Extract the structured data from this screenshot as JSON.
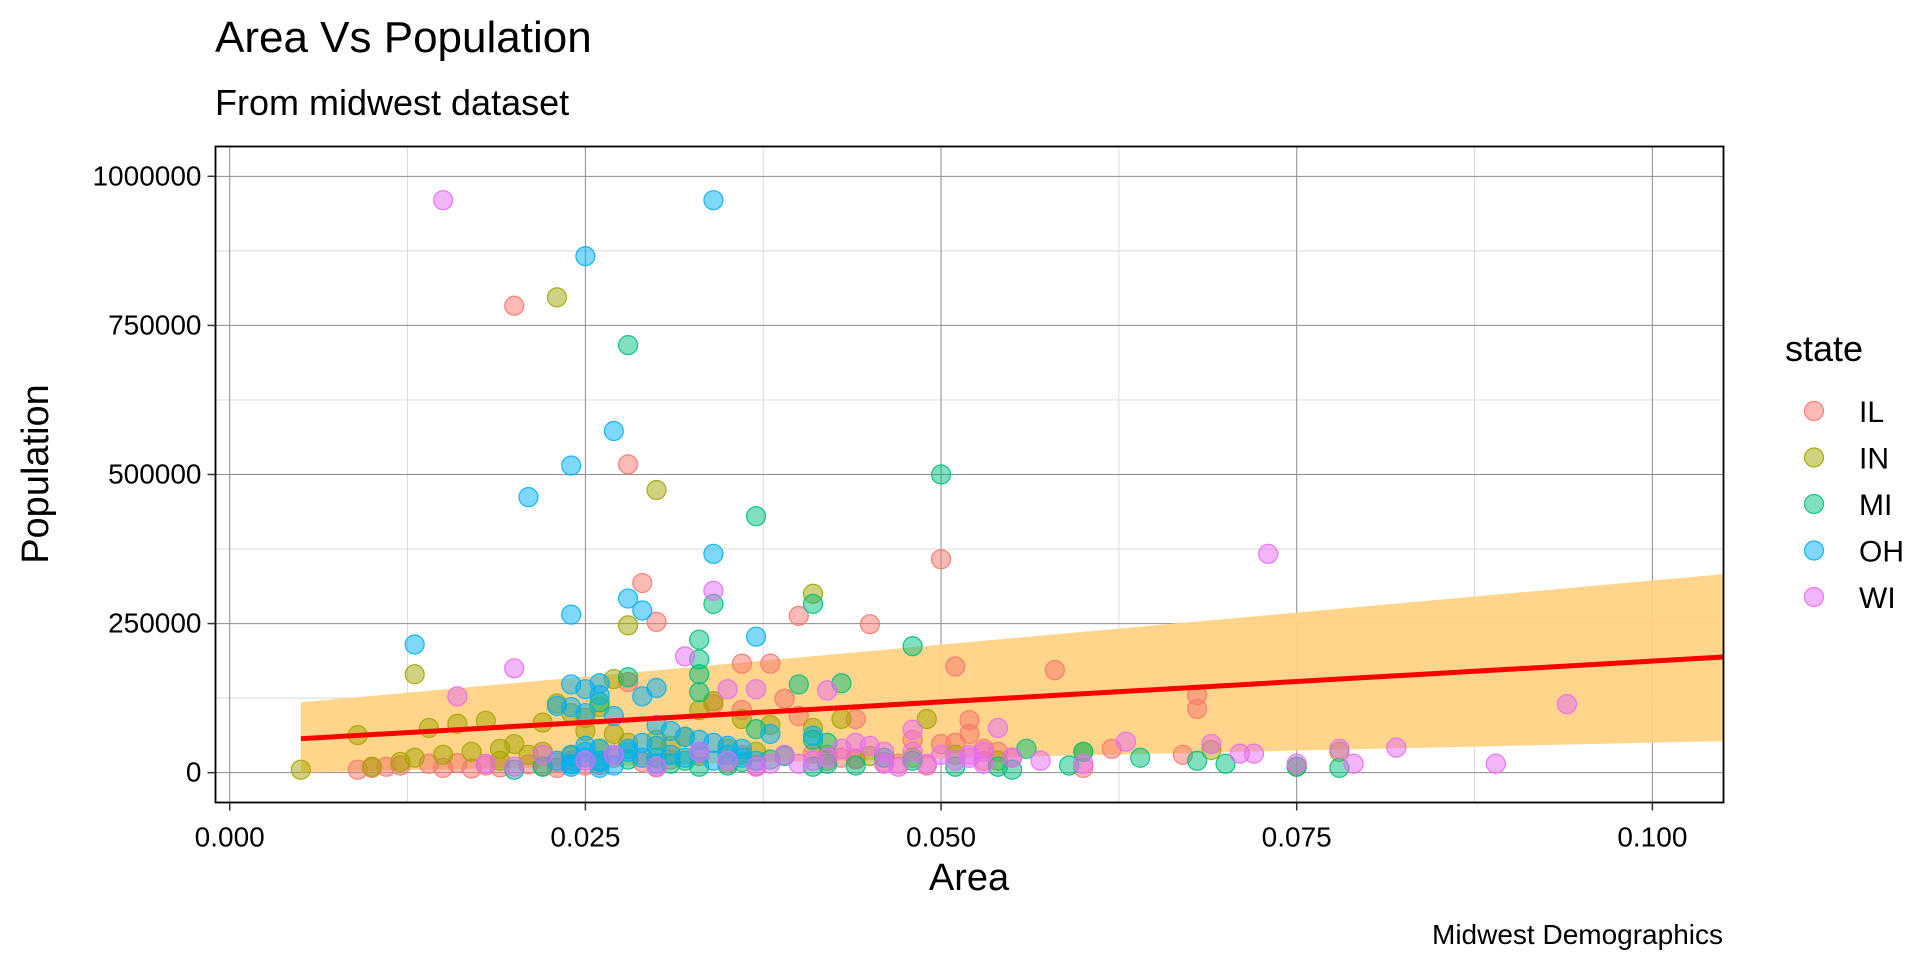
{
  "chart_data": {
    "type": "scatter",
    "title": "Area Vs Population",
    "subtitle": "From midwest dataset",
    "caption": "Midwest Demographics",
    "xlabel": "Area",
    "ylabel": "Population",
    "xlim": [
      -0.001,
      0.105
    ],
    "ylim": [
      -50000,
      1050000
    ],
    "x_ticks": [
      0.0,
      0.025,
      0.05,
      0.075,
      0.1
    ],
    "x_tick_labels": [
      "0.000",
      "0.025",
      "0.050",
      "0.075",
      "0.100"
    ],
    "y_ticks": [
      0,
      250000,
      500000,
      750000,
      1000000
    ],
    "y_tick_labels": [
      "0",
      "250000",
      "500000",
      "750000",
      "1000000"
    ],
    "grid": true,
    "legend": {
      "title": "state",
      "position": "right"
    },
    "series": [
      {
        "name": "IL",
        "color": "#F8766D",
        "points": [
          [
            0.02,
            783000
          ],
          [
            0.028,
            517000
          ],
          [
            0.029,
            318000
          ],
          [
            0.03,
            253000
          ],
          [
            0.05,
            358000
          ],
          [
            0.045,
            249000
          ],
          [
            0.04,
            263000
          ],
          [
            0.051,
            178000
          ],
          [
            0.058,
            172000
          ],
          [
            0.068,
            130000
          ],
          [
            0.068,
            107000
          ],
          [
            0.036,
            183000
          ],
          [
            0.038,
            183000
          ],
          [
            0.039,
            124000
          ],
          [
            0.028,
            152000
          ],
          [
            0.034,
            115000
          ],
          [
            0.036,
            105000
          ],
          [
            0.04,
            95000
          ],
          [
            0.044,
            90000
          ],
          [
            0.052,
            88000
          ],
          [
            0.052,
            65000
          ],
          [
            0.048,
            55000
          ],
          [
            0.05,
            48000
          ],
          [
            0.051,
            50000
          ],
          [
            0.053,
            40000
          ],
          [
            0.054,
            35000
          ],
          [
            0.062,
            40000
          ],
          [
            0.067,
            30000
          ],
          [
            0.009,
            5000
          ],
          [
            0.01,
            8000
          ],
          [
            0.011,
            10000
          ],
          [
            0.012,
            12000
          ],
          [
            0.014,
            15000
          ],
          [
            0.015,
            8000
          ],
          [
            0.017,
            7000
          ],
          [
            0.018,
            12000
          ],
          [
            0.019,
            9000
          ],
          [
            0.021,
            14000
          ],
          [
            0.022,
            11000
          ],
          [
            0.023,
            17000
          ],
          [
            0.024,
            20000
          ],
          [
            0.026,
            13000
          ],
          [
            0.027,
            25000
          ],
          [
            0.029,
            18000
          ],
          [
            0.03,
            9000
          ],
          [
            0.031,
            22000
          ],
          [
            0.033,
            28000
          ],
          [
            0.035,
            16000
          ],
          [
            0.036,
            30000
          ],
          [
            0.037,
            12000
          ],
          [
            0.041,
            32000
          ],
          [
            0.042,
            20000
          ],
          [
            0.043,
            25000
          ],
          [
            0.044,
            22000
          ],
          [
            0.046,
            18000
          ],
          [
            0.047,
            15000
          ],
          [
            0.049,
            12000
          ],
          [
            0.053,
            20000
          ],
          [
            0.055,
            25000
          ],
          [
            0.06,
            8000
          ],
          [
            0.025,
            12000
          ],
          [
            0.023,
            8000
          ],
          [
            0.016,
            16000
          ],
          [
            0.044,
            24000
          ]
        ]
      },
      {
        "name": "IN",
        "color": "#A3A500",
        "points": [
          [
            0.023,
            797000
          ],
          [
            0.03,
            474000
          ],
          [
            0.041,
            300000
          ],
          [
            0.028,
            247000
          ],
          [
            0.013,
            165000
          ],
          [
            0.027,
            157000
          ],
          [
            0.022,
            84000
          ],
          [
            0.024,
            100000
          ],
          [
            0.025,
            92000
          ],
          [
            0.02,
            48000
          ],
          [
            0.014,
            75000
          ],
          [
            0.009,
            63000
          ],
          [
            0.018,
            87000
          ],
          [
            0.019,
            40000
          ],
          [
            0.016,
            82000
          ],
          [
            0.023,
            116000
          ],
          [
            0.026,
            110000
          ],
          [
            0.033,
            105000
          ],
          [
            0.034,
            120000
          ],
          [
            0.036,
            90000
          ],
          [
            0.038,
            80000
          ],
          [
            0.041,
            75000
          ],
          [
            0.043,
            90000
          ],
          [
            0.049,
            90000
          ],
          [
            0.005,
            5000
          ],
          [
            0.01,
            10000
          ],
          [
            0.012,
            18000
          ],
          [
            0.013,
            25000
          ],
          [
            0.015,
            30000
          ],
          [
            0.017,
            35000
          ],
          [
            0.021,
            30000
          ],
          [
            0.022,
            35000
          ],
          [
            0.024,
            28000
          ],
          [
            0.026,
            40000
          ],
          [
            0.028,
            50000
          ],
          [
            0.03,
            55000
          ],
          [
            0.031,
            45000
          ],
          [
            0.032,
            60000
          ],
          [
            0.035,
            40000
          ],
          [
            0.037,
            35000
          ],
          [
            0.042,
            30000
          ],
          [
            0.045,
            28000
          ],
          [
            0.048,
            25000
          ],
          [
            0.051,
            30000
          ],
          [
            0.054,
            20000
          ],
          [
            0.06,
            35000
          ],
          [
            0.069,
            38000
          ],
          [
            0.078,
            35000
          ],
          [
            0.075,
            10000
          ],
          [
            0.027,
            65000
          ],
          [
            0.025,
            70000
          ],
          [
            0.019,
            20000
          ]
        ]
      },
      {
        "name": "MI",
        "color": "#00BF7D",
        "points": [
          [
            0.028,
            717000
          ],
          [
            0.05,
            500000
          ],
          [
            0.037,
            430000
          ],
          [
            0.034,
            283000
          ],
          [
            0.041,
            283000
          ],
          [
            0.048,
            212000
          ],
          [
            0.033,
            223000
          ],
          [
            0.033,
            190000
          ],
          [
            0.033,
            165000
          ],
          [
            0.033,
            135000
          ],
          [
            0.028,
            160000
          ],
          [
            0.043,
            150000
          ],
          [
            0.04,
            148000
          ],
          [
            0.026,
            118000
          ],
          [
            0.037,
            73000
          ],
          [
            0.041,
            55000
          ],
          [
            0.042,
            50000
          ],
          [
            0.056,
            40000
          ],
          [
            0.06,
            35000
          ],
          [
            0.064,
            25000
          ],
          [
            0.068,
            20000
          ],
          [
            0.07,
            15000
          ],
          [
            0.075,
            10000
          ],
          [
            0.078,
            8000
          ],
          [
            0.055,
            5000
          ],
          [
            0.051,
            10000
          ],
          [
            0.059,
            12000
          ],
          [
            0.02,
            5000
          ],
          [
            0.022,
            10000
          ],
          [
            0.024,
            14000
          ],
          [
            0.026,
            18000
          ],
          [
            0.028,
            22000
          ],
          [
            0.03,
            25000
          ],
          [
            0.031,
            15000
          ],
          [
            0.032,
            20000
          ],
          [
            0.033,
            10000
          ],
          [
            0.035,
            12000
          ],
          [
            0.036,
            18000
          ],
          [
            0.038,
            22000
          ],
          [
            0.039,
            28000
          ],
          [
            0.041,
            10000
          ],
          [
            0.042,
            15000
          ],
          [
            0.044,
            12000
          ],
          [
            0.046,
            25000
          ],
          [
            0.048,
            20000
          ],
          [
            0.054,
            10000
          ]
        ]
      },
      {
        "name": "OH",
        "color": "#00B0F6",
        "points": [
          [
            0.034,
            960000
          ],
          [
            0.025,
            866000
          ],
          [
            0.027,
            573000
          ],
          [
            0.024,
            515000
          ],
          [
            0.021,
            462000
          ],
          [
            0.034,
            367000
          ],
          [
            0.028,
            292000
          ],
          [
            0.029,
            272000
          ],
          [
            0.024,
            265000
          ],
          [
            0.037,
            228000
          ],
          [
            0.013,
            215000
          ],
          [
            0.024,
            148000
          ],
          [
            0.026,
            150000
          ],
          [
            0.025,
            140000
          ],
          [
            0.03,
            142000
          ],
          [
            0.026,
            130000
          ],
          [
            0.029,
            128000
          ],
          [
            0.023,
            112000
          ],
          [
            0.024,
            110000
          ],
          [
            0.025,
            100000
          ],
          [
            0.027,
            95000
          ],
          [
            0.038,
            65000
          ],
          [
            0.041,
            62000
          ],
          [
            0.03,
            80000
          ],
          [
            0.031,
            70000
          ],
          [
            0.032,
            60000
          ],
          [
            0.033,
            55000
          ],
          [
            0.034,
            50000
          ],
          [
            0.035,
            45000
          ],
          [
            0.036,
            40000
          ],
          [
            0.024,
            30000
          ],
          [
            0.025,
            25000
          ],
          [
            0.026,
            20000
          ],
          [
            0.024,
            15000
          ],
          [
            0.025,
            35000
          ],
          [
            0.026,
            40000
          ],
          [
            0.027,
            30000
          ],
          [
            0.028,
            35000
          ],
          [
            0.029,
            25000
          ],
          [
            0.03,
            45000
          ],
          [
            0.031,
            30000
          ],
          [
            0.032,
            25000
          ],
          [
            0.033,
            35000
          ],
          [
            0.034,
            20000
          ],
          [
            0.035,
            30000
          ],
          [
            0.036,
            25000
          ],
          [
            0.037,
            20000
          ],
          [
            0.023,
            20000
          ],
          [
            0.024,
            10000
          ],
          [
            0.025,
            45000
          ],
          [
            0.026,
            8000
          ],
          [
            0.027,
            12000
          ],
          [
            0.028,
            40000
          ],
          [
            0.029,
            50000
          ],
          [
            0.03,
            15000
          ]
        ]
      },
      {
        "name": "WI",
        "color": "#E76BF3",
        "points": [
          [
            0.015,
            960000
          ],
          [
            0.073,
            367000
          ],
          [
            0.034,
            305000
          ],
          [
            0.032,
            195000
          ],
          [
            0.02,
            175000
          ],
          [
            0.035,
            140000
          ],
          [
            0.037,
            140000
          ],
          [
            0.016,
            128000
          ],
          [
            0.042,
            138000
          ],
          [
            0.048,
            72000
          ],
          [
            0.052,
            30000
          ],
          [
            0.053,
            35000
          ],
          [
            0.054,
            75000
          ],
          [
            0.057,
            20000
          ],
          [
            0.06,
            15000
          ],
          [
            0.063,
            52000
          ],
          [
            0.069,
            48000
          ],
          [
            0.071,
            32000
          ],
          [
            0.072,
            32000
          ],
          [
            0.075,
            15000
          ],
          [
            0.078,
            40000
          ],
          [
            0.079,
            15000
          ],
          [
            0.082,
            42000
          ],
          [
            0.089,
            15000
          ],
          [
            0.094,
            115000
          ],
          [
            0.04,
            15000
          ],
          [
            0.042,
            25000
          ],
          [
            0.045,
            45000
          ],
          [
            0.046,
            35000
          ],
          [
            0.047,
            10000
          ],
          [
            0.049,
            15000
          ],
          [
            0.05,
            30000
          ],
          [
            0.051,
            20000
          ],
          [
            0.053,
            15000
          ],
          [
            0.055,
            25000
          ],
          [
            0.018,
            15000
          ],
          [
            0.02,
            10000
          ],
          [
            0.022,
            30000
          ],
          [
            0.025,
            20000
          ],
          [
            0.027,
            30000
          ],
          [
            0.03,
            10000
          ],
          [
            0.033,
            35000
          ],
          [
            0.035,
            20000
          ],
          [
            0.037,
            10000
          ],
          [
            0.039,
            30000
          ],
          [
            0.041,
            20000
          ],
          [
            0.043,
            40000
          ],
          [
            0.044,
            50000
          ],
          [
            0.046,
            15000
          ],
          [
            0.048,
            35000
          ],
          [
            0.052,
            25000
          ],
          [
            0.038,
            15000
          ]
        ]
      }
    ],
    "smooth": {
      "method": "lm",
      "color": "#FF0000",
      "band_color": "#FFD386",
      "line": [
        [
          0.005,
          57000
        ],
        [
          0.105,
          194000
        ]
      ],
      "band_upper": [
        [
          0.005,
          118000
        ],
        [
          0.105,
          333000
        ]
      ],
      "band_lower": [
        [
          0.005,
          0
        ],
        [
          0.105,
          53000
        ]
      ]
    }
  }
}
